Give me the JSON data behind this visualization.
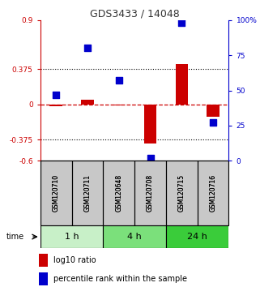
{
  "title": "GDS3433 / 14048",
  "samples": [
    "GSM120710",
    "GSM120711",
    "GSM120648",
    "GSM120708",
    "GSM120715",
    "GSM120716"
  ],
  "log10_ratio": [
    -0.02,
    0.05,
    -0.01,
    -0.42,
    0.43,
    -0.13
  ],
  "percentile_rank": [
    47,
    80,
    57,
    2,
    98,
    27
  ],
  "ylim_left": [
    -0.6,
    0.9
  ],
  "ylim_right": [
    0,
    100
  ],
  "yticks_left": [
    -0.6,
    -0.375,
    0,
    0.375,
    0.9
  ],
  "ytick_labels_left": [
    "-0.6",
    "-0.375",
    "0",
    "0.375",
    "0.9"
  ],
  "yticks_right": [
    0,
    25,
    50,
    75,
    100
  ],
  "ytick_labels_right": [
    "0",
    "25",
    "50",
    "75",
    "100%"
  ],
  "dotted_yticks": [
    -0.375,
    0.375
  ],
  "time_groups": [
    {
      "label": "1 h",
      "samples": [
        "GSM120710",
        "GSM120711"
      ],
      "color": "#c8f0c8"
    },
    {
      "label": "4 h",
      "samples": [
        "GSM120648",
        "GSM120708"
      ],
      "color": "#7be07b"
    },
    {
      "label": "24 h",
      "samples": [
        "GSM120715",
        "GSM120716"
      ],
      "color": "#3acc3a"
    }
  ],
  "bar_color": "#cc0000",
  "dot_color": "#0000cc",
  "zero_line_color": "#cc0000",
  "bar_width": 0.4,
  "dot_size": 30,
  "title_color": "#333333",
  "left_axis_color": "#cc0000",
  "right_axis_color": "#0000cc",
  "sample_box_color": "#c8c8c8",
  "legend_items": [
    {
      "label": "log10 ratio",
      "color": "#cc0000"
    },
    {
      "label": "percentile rank within the sample",
      "color": "#0000cc"
    }
  ]
}
